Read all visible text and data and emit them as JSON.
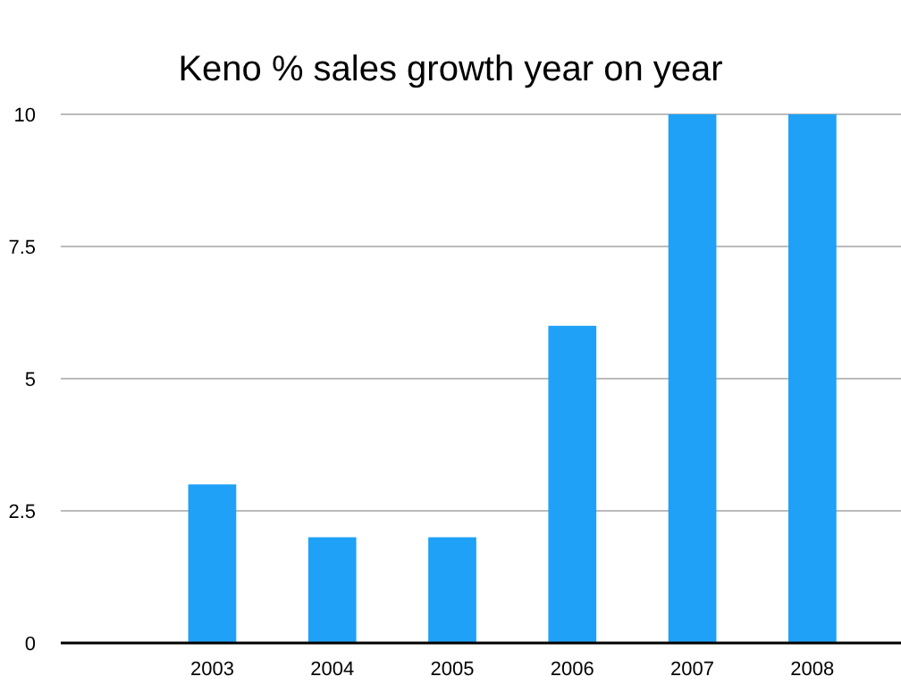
{
  "chart_data": {
    "type": "bar",
    "title": "Keno % sales growth year on year",
    "categories": [
      null,
      "2003",
      "2004",
      "2005",
      "2006",
      "2007",
      "2008"
    ],
    "values": [
      null,
      3,
      2,
      2,
      6,
      10,
      10
    ],
    "color": "#1ea1f7",
    "ylim": [
      0,
      10
    ],
    "yticks": [
      0,
      2.5,
      5,
      7.5,
      10
    ],
    "grid": "y"
  }
}
